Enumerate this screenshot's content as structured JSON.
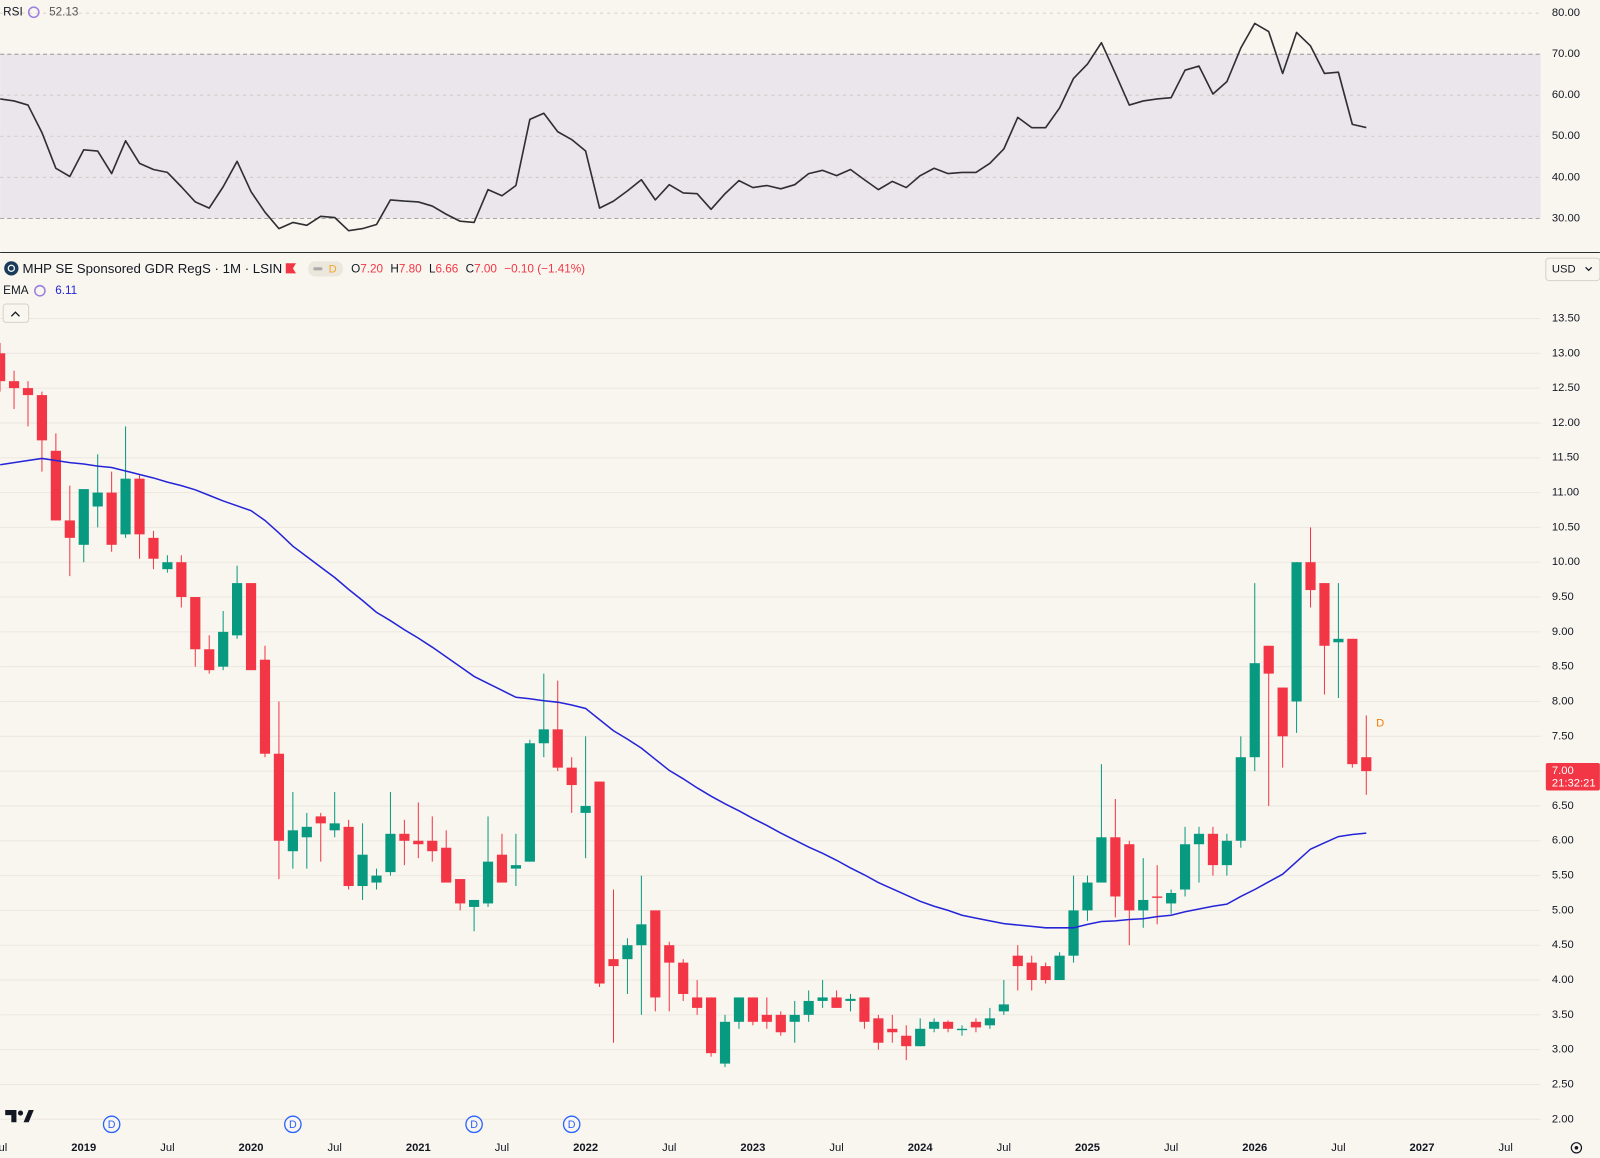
{
  "chart_data": [
    {
      "type": "line",
      "series": [
        {
          "name": "RSI",
          "color": "#2f2f33",
          "values": [
            59.1,
            58.6,
            57.6,
            50.9,
            42.2,
            40.2,
            46.7,
            46.4,
            40.9,
            48.9,
            43.4,
            41.9,
            41.2,
            37.7,
            34.0,
            32.5,
            37.7,
            43.9,
            36.5,
            31.5,
            27.5,
            29.0,
            28.3,
            30.5,
            30.2,
            27.0,
            27.5,
            28.5,
            34.5,
            34.2,
            34.0,
            33.0,
            31.0,
            29.3,
            29.0,
            37.0,
            35.5,
            38.0,
            54.1,
            55.6,
            51.1,
            49.2,
            46.4,
            32.5,
            34.2,
            36.7,
            39.4,
            34.5,
            38.2,
            36.2,
            36.0,
            32.2,
            36.0,
            39.2,
            37.5,
            38.0,
            37.2,
            38.2,
            40.9,
            41.7,
            40.4,
            41.9,
            39.4,
            37.0,
            39.0,
            37.5,
            40.4,
            42.2,
            40.9,
            41.2,
            41.2,
            43.4,
            46.9,
            54.6,
            52.1,
            52.1,
            56.9,
            64.1,
            67.6,
            72.8,
            65.3,
            57.6,
            58.6,
            59.1,
            59.4,
            66.1,
            67.1,
            60.3,
            63.3,
            71.5,
            77.5,
            75.5,
            65.3,
            75.3,
            72.0,
            65.3,
            65.6,
            52.9,
            52.13
          ]
        }
      ],
      "x": [
        "2018-07",
        "2018-08",
        "2018-09",
        "2018-10",
        "2018-11",
        "2018-12",
        "2019-01",
        "2019-02",
        "2019-03",
        "2019-04",
        "2019-05",
        "2019-06",
        "2019-07",
        "2019-08",
        "2019-09",
        "2019-10",
        "2019-11",
        "2019-12",
        "2020-01",
        "2020-02",
        "2020-03",
        "2020-04",
        "2020-05",
        "2020-06",
        "2020-07",
        "2020-08",
        "2020-09",
        "2020-10",
        "2020-11",
        "2020-12",
        "2021-01",
        "2021-02",
        "2021-03",
        "2021-04",
        "2021-05",
        "2021-06",
        "2021-07",
        "2021-08",
        "2021-09",
        "2021-10",
        "2021-11",
        "2021-12",
        "2022-01",
        "2022-02",
        "2022-03",
        "2022-04",
        "2022-05",
        "2022-06",
        "2022-07",
        "2022-08",
        "2022-09",
        "2022-10",
        "2022-11",
        "2022-12",
        "2023-01",
        "2023-02",
        "2023-03",
        "2023-04",
        "2023-05",
        "2023-06",
        "2023-07",
        "2023-08",
        "2023-09",
        "2023-10",
        "2023-11",
        "2023-12",
        "2024-01",
        "2024-02",
        "2024-03",
        "2024-04",
        "2024-05",
        "2024-06",
        "2024-07",
        "2024-08",
        "2024-09",
        "2024-10",
        "2024-11",
        "2024-12",
        "2025-01",
        "2025-02",
        "2025-03",
        "2025-04",
        "2025-05",
        "2025-06",
        "2025-07",
        "2025-08",
        "2025-09",
        "2025-10",
        "2025-11",
        "2025-12",
        "2026-01",
        "2026-02",
        "2026-03",
        "2026-04",
        "2026-05",
        "2026-06",
        "2026-07",
        "2026-08",
        "2026-09"
      ],
      "xlim": [
        "2018-07",
        "2027-09"
      ],
      "ylim": [
        21.8,
        83.2
      ],
      "yticks": [
        {
          "value": 30,
          "label": "30.00"
        },
        {
          "value": 40,
          "label": "40.00"
        },
        {
          "value": 50,
          "label": "50.00"
        },
        {
          "value": 60,
          "label": "60.00"
        },
        {
          "value": 70,
          "label": "70.00"
        },
        {
          "value": 80,
          "label": "80.00"
        }
      ],
      "band": [
        30,
        70
      ],
      "band_color": "#ebe5ec"
    },
    {
      "type": "candlestick",
      "title": "MHP SE Sponsored GDR RegS · 1M · LSIN",
      "header_badge": "D",
      "ohlc": [
        {
          "key": "O",
          "value": "7.20"
        },
        {
          "key": "H",
          "value": "7.80"
        },
        {
          "key": "L",
          "value": "6.66"
        },
        {
          "key": "C",
          "value": "7.00"
        }
      ],
      "change": "−0.10 (−1.41%)",
      "currency": "USD",
      "last_price_label": "7.00",
      "countdown": "21:32:21",
      "up_color": "#089981",
      "down_color": "#f23645",
      "x": [
        "2018-07",
        "2018-08",
        "2018-09",
        "2018-10",
        "2018-11",
        "2018-12",
        "2019-01",
        "2019-02",
        "2019-03",
        "2019-04",
        "2019-05",
        "2019-06",
        "2019-07",
        "2019-08",
        "2019-09",
        "2019-10",
        "2019-11",
        "2019-12",
        "2020-01",
        "2020-02",
        "2020-03",
        "2020-04",
        "2020-05",
        "2020-06",
        "2020-07",
        "2020-08",
        "2020-09",
        "2020-10",
        "2020-11",
        "2020-12",
        "2021-01",
        "2021-02",
        "2021-03",
        "2021-04",
        "2021-05",
        "2021-06",
        "2021-07",
        "2021-08",
        "2021-09",
        "2021-10",
        "2021-11",
        "2021-12",
        "2022-01",
        "2022-02",
        "2022-03",
        "2022-04",
        "2022-05",
        "2022-06",
        "2022-07",
        "2022-08",
        "2022-09",
        "2022-10",
        "2022-11",
        "2022-12",
        "2023-01",
        "2023-02",
        "2023-03",
        "2023-04",
        "2023-05",
        "2023-06",
        "2023-07",
        "2023-08",
        "2023-09",
        "2023-10",
        "2023-11",
        "2023-12",
        "2024-01",
        "2024-02",
        "2024-03",
        "2024-04",
        "2024-05",
        "2024-06",
        "2024-07",
        "2024-08",
        "2024-09",
        "2024-10",
        "2024-11",
        "2024-12",
        "2025-01",
        "2025-02",
        "2025-03",
        "2025-04",
        "2025-05",
        "2025-06",
        "2025-07",
        "2025-08",
        "2025-09",
        "2025-10",
        "2025-11",
        "2025-12",
        "2026-01",
        "2026-02",
        "2026-03",
        "2026-04",
        "2026-05",
        "2026-06",
        "2026-07",
        "2026-08",
        "2026-09"
      ],
      "open": [
        13.0,
        12.6,
        12.5,
        12.4,
        11.6,
        10.6,
        10.25,
        10.8,
        11.0,
        10.4,
        11.2,
        10.35,
        9.9,
        10.0,
        9.5,
        8.75,
        8.5,
        8.95,
        9.7,
        8.6,
        7.25,
        5.85,
        6.05,
        6.35,
        6.15,
        6.2,
        5.35,
        5.4,
        5.55,
        6.1,
        6.0,
        6.0,
        5.9,
        5.45,
        5.05,
        5.1,
        5.8,
        5.6,
        5.7,
        7.4,
        7.6,
        7.05,
        6.4,
        6.85,
        4.3,
        4.3,
        4.5,
        5.0,
        4.5,
        4.25,
        3.75,
        3.75,
        2.8,
        3.4,
        3.75,
        3.5,
        3.5,
        3.4,
        3.5,
        3.7,
        3.75,
        3.7,
        3.75,
        3.45,
        3.3,
        3.2,
        3.05,
        3.3,
        3.4,
        3.28,
        3.4,
        3.35,
        3.55,
        4.35,
        4.25,
        4.2,
        4.0,
        4.35,
        5.0,
        5.4,
        6.05,
        5.95,
        5.0,
        5.2,
        5.1,
        5.3,
        5.95,
        6.1,
        5.65,
        6.0,
        7.2,
        8.8,
        8.2,
        8.0,
        10.0,
        9.7,
        8.85,
        8.9,
        7.2
      ],
      "high": [
        13.15,
        12.75,
        12.6,
        12.45,
        11.85,
        11.1,
        11.05,
        11.55,
        11.3,
        11.95,
        11.25,
        10.45,
        10.1,
        10.1,
        9.5,
        8.95,
        9.3,
        9.95,
        9.7,
        8.8,
        8.0,
        6.7,
        6.4,
        6.4,
        6.7,
        6.3,
        6.25,
        5.6,
        6.7,
        6.3,
        6.55,
        6.35,
        6.15,
        5.45,
        5.15,
        6.35,
        6.1,
        6.1,
        7.45,
        8.4,
        8.3,
        7.2,
        7.5,
        6.85,
        5.3,
        4.6,
        5.5,
        5.0,
        4.55,
        4.3,
        4.0,
        3.75,
        3.5,
        3.75,
        3.75,
        3.75,
        3.55,
        3.7,
        3.85,
        4.0,
        3.85,
        3.8,
        3.75,
        3.5,
        3.5,
        3.35,
        3.45,
        3.45,
        3.42,
        3.35,
        3.45,
        3.6,
        4.0,
        4.5,
        4.35,
        4.25,
        4.4,
        5.5,
        5.5,
        7.1,
        6.6,
        6.0,
        5.75,
        5.65,
        5.3,
        6.2,
        6.2,
        6.2,
        6.1,
        7.5,
        9.7,
        8.8,
        8.2,
        10.0,
        10.5,
        9.7,
        9.7,
        8.9,
        7.8
      ],
      "low": [
        12.45,
        12.2,
        11.95,
        11.3,
        10.6,
        9.8,
        10.0,
        10.5,
        10.15,
        10.35,
        10.05,
        9.9,
        9.85,
        9.35,
        8.5,
        8.4,
        8.45,
        8.9,
        8.45,
        7.2,
        5.45,
        5.6,
        5.6,
        5.7,
        6.05,
        5.3,
        5.15,
        5.3,
        5.5,
        5.65,
        5.75,
        5.7,
        5.45,
        5.0,
        4.7,
        5.05,
        5.4,
        5.35,
        5.7,
        7.2,
        7.0,
        6.4,
        5.75,
        3.9,
        3.1,
        3.8,
        3.5,
        3.55,
        3.55,
        3.7,
        3.5,
        2.9,
        2.75,
        3.3,
        3.35,
        3.3,
        3.2,
        3.1,
        3.4,
        3.6,
        3.6,
        3.55,
        3.3,
        3.0,
        3.1,
        2.85,
        3.05,
        3.25,
        3.25,
        3.2,
        3.25,
        3.3,
        3.5,
        3.85,
        3.85,
        3.95,
        4.0,
        4.25,
        4.85,
        5.4,
        4.9,
        4.5,
        4.75,
        4.8,
        4.95,
        5.2,
        5.4,
        5.5,
        5.5,
        5.9,
        7.0,
        6.5,
        7.05,
        7.55,
        9.35,
        8.1,
        8.05,
        7.05,
        6.66
      ],
      "close": [
        12.6,
        12.5,
        12.4,
        11.75,
        10.6,
        10.35,
        11.05,
        11.0,
        10.25,
        11.2,
        10.4,
        10.05,
        10.0,
        9.5,
        8.75,
        8.45,
        9.0,
        9.7,
        8.45,
        7.25,
        6.0,
        6.15,
        6.2,
        6.25,
        6.25,
        5.35,
        5.8,
        5.5,
        6.1,
        6.0,
        5.95,
        5.85,
        5.4,
        5.1,
        5.15,
        5.7,
        5.4,
        5.65,
        7.4,
        7.6,
        7.05,
        6.8,
        6.5,
        3.95,
        4.2,
        4.5,
        4.8,
        3.75,
        4.25,
        3.8,
        3.6,
        2.95,
        3.4,
        3.75,
        3.4,
        3.4,
        3.25,
        3.5,
        3.7,
        3.75,
        3.6,
        3.73,
        3.4,
        3.1,
        3.25,
        3.05,
        3.3,
        3.4,
        3.3,
        3.3,
        3.32,
        3.45,
        3.65,
        4.2,
        4.0,
        4.0,
        4.35,
        5.0,
        5.4,
        6.05,
        5.2,
        5.0,
        5.15,
        5.18,
        5.25,
        5.95,
        6.1,
        5.65,
        6.0,
        7.2,
        8.55,
        8.4,
        7.5,
        10.0,
        9.6,
        8.8,
        8.9,
        7.1,
        7.0
      ],
      "series": [
        {
          "name": "EMA",
          "color": "#2424d8",
          "values": [
            11.4,
            11.43,
            11.46,
            11.49,
            11.46,
            11.43,
            11.41,
            11.38,
            11.36,
            11.31,
            11.26,
            11.21,
            11.15,
            11.1,
            11.04,
            10.96,
            10.88,
            10.81,
            10.74,
            10.6,
            10.42,
            10.23,
            10.08,
            9.93,
            9.78,
            9.61,
            9.45,
            9.28,
            9.16,
            9.03,
            8.91,
            8.78,
            8.64,
            8.5,
            8.36,
            8.26,
            8.16,
            8.06,
            8.04,
            8.01,
            7.99,
            7.95,
            7.9,
            7.74,
            7.58,
            7.46,
            7.33,
            7.17,
            7.01,
            6.89,
            6.76,
            6.64,
            6.53,
            6.43,
            6.32,
            6.22,
            6.11,
            6.01,
            5.91,
            5.82,
            5.72,
            5.61,
            5.51,
            5.4,
            5.31,
            5.22,
            5.13,
            5.06,
            5.0,
            4.93,
            4.89,
            4.85,
            4.81,
            4.79,
            4.77,
            4.75,
            4.75,
            4.75,
            4.8,
            4.84,
            4.85,
            4.87,
            4.88,
            4.91,
            4.93,
            4.98,
            5.02,
            5.06,
            5.09,
            5.2,
            5.3,
            5.41,
            5.52,
            5.7,
            5.88,
            5.97,
            6.06,
            6.09,
            6.11
          ]
        }
      ],
      "xlim": [
        "2018-07",
        "2027-09"
      ],
      "ylim": [
        1.84,
        14.44
      ],
      "yticks": [
        {
          "value": 2,
          "label": "2.00"
        },
        {
          "value": 2.5,
          "label": "2.50"
        },
        {
          "value": 3,
          "label": "3.00"
        },
        {
          "value": 3.5,
          "label": "3.50"
        },
        {
          "value": 4,
          "label": "4.00"
        },
        {
          "value": 4.5,
          "label": "4.50"
        },
        {
          "value": 5,
          "label": "5.00"
        },
        {
          "value": 5.5,
          "label": "5.50"
        },
        {
          "value": 6,
          "label": "6.00"
        },
        {
          "value": 6.5,
          "label": "6.50"
        },
        {
          "value": 7,
          "label": "7.00"
        },
        {
          "value": 7.5,
          "label": "7.50"
        },
        {
          "value": 8,
          "label": "8.00"
        },
        {
          "value": 8.5,
          "label": "8.50"
        },
        {
          "value": 9,
          "label": "9.00"
        },
        {
          "value": 9.5,
          "label": "9.50"
        },
        {
          "value": 10,
          "label": "10.00"
        },
        {
          "value": 10.5,
          "label": "10.50"
        },
        {
          "value": 11,
          "label": "11.00"
        },
        {
          "value": 11.5,
          "label": "11.50"
        },
        {
          "value": 12,
          "label": "12.00"
        },
        {
          "value": 12.5,
          "label": "12.50"
        },
        {
          "value": 13,
          "label": "13.00"
        },
        {
          "value": 13.5,
          "label": "13.50"
        }
      ],
      "xticks": [
        {
          "value": "2018-07",
          "label": "Jul"
        },
        {
          "value": "2019-01",
          "label": "2019"
        },
        {
          "value": "2019-07",
          "label": "Jul"
        },
        {
          "value": "2020-01",
          "label": "2020"
        },
        {
          "value": "2020-07",
          "label": "Jul"
        },
        {
          "value": "2021-01",
          "label": "2021"
        },
        {
          "value": "2021-07",
          "label": "Jul"
        },
        {
          "value": "2022-01",
          "label": "2022"
        },
        {
          "value": "2022-07",
          "label": "Jul"
        },
        {
          "value": "2023-01",
          "label": "2023"
        },
        {
          "value": "2023-07",
          "label": "Jul"
        },
        {
          "value": "2024-01",
          "label": "2024"
        },
        {
          "value": "2024-07",
          "label": "Jul"
        },
        {
          "value": "2025-01",
          "label": "2025"
        },
        {
          "value": "2025-07",
          "label": "Jul"
        },
        {
          "value": "2026-01",
          "label": "2026"
        },
        {
          "value": "2026-07",
          "label": "Jul"
        },
        {
          "value": "2027-01",
          "label": "2027"
        },
        {
          "value": "2027-07",
          "label": "Jul"
        }
      ],
      "grid": true,
      "events": [
        {
          "x": "2019-03",
          "label": "D"
        },
        {
          "x": "2020-04",
          "label": "D"
        },
        {
          "x": "2021-05",
          "label": "D"
        },
        {
          "x": "2021-12",
          "label": "D"
        }
      ],
      "next_event": {
        "x": "2026-10",
        "label": "D"
      }
    }
  ]
}
